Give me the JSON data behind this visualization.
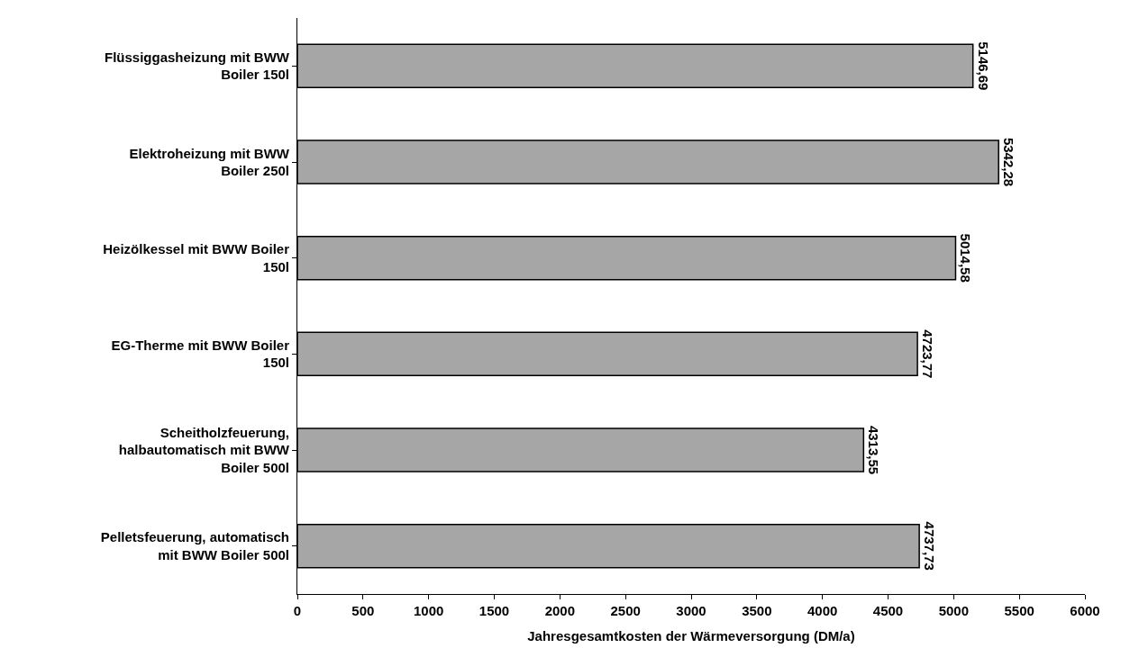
{
  "chart_data": {
    "type": "bar",
    "orientation": "horizontal",
    "xlabel": "Jahresgesamtkosten der Wärmeversorgung (DM/a)",
    "categories": [
      "Flüssiggasheizung mit BWW Boiler 150l",
      "Elektroheizung mit BWW Boiler 250l",
      "Heizölkessel mit BWW Boiler 150l",
      "EG-Therme mit BWW Boiler 150l",
      "Scheitholzfeuerung, halbautomatisch mit BWW Boiler 500l",
      "Pelletsfeuerung, automatisch mit BWW Boiler 500l"
    ],
    "values": [
      5146.69,
      5342.28,
      5014.58,
      4723.77,
      4313.55,
      4737.73
    ],
    "value_labels": [
      "5146,69",
      "5342,28",
      "5014,58",
      "4723,77",
      "4313,55",
      "4737,73"
    ],
    "color": "#a6a6a6",
    "xlim": [
      0,
      6000
    ],
    "xticks": [
      0,
      500,
      1000,
      1500,
      2000,
      2500,
      3000,
      3500,
      4000,
      4500,
      5000,
      5500,
      6000
    ],
    "legend": false
  }
}
